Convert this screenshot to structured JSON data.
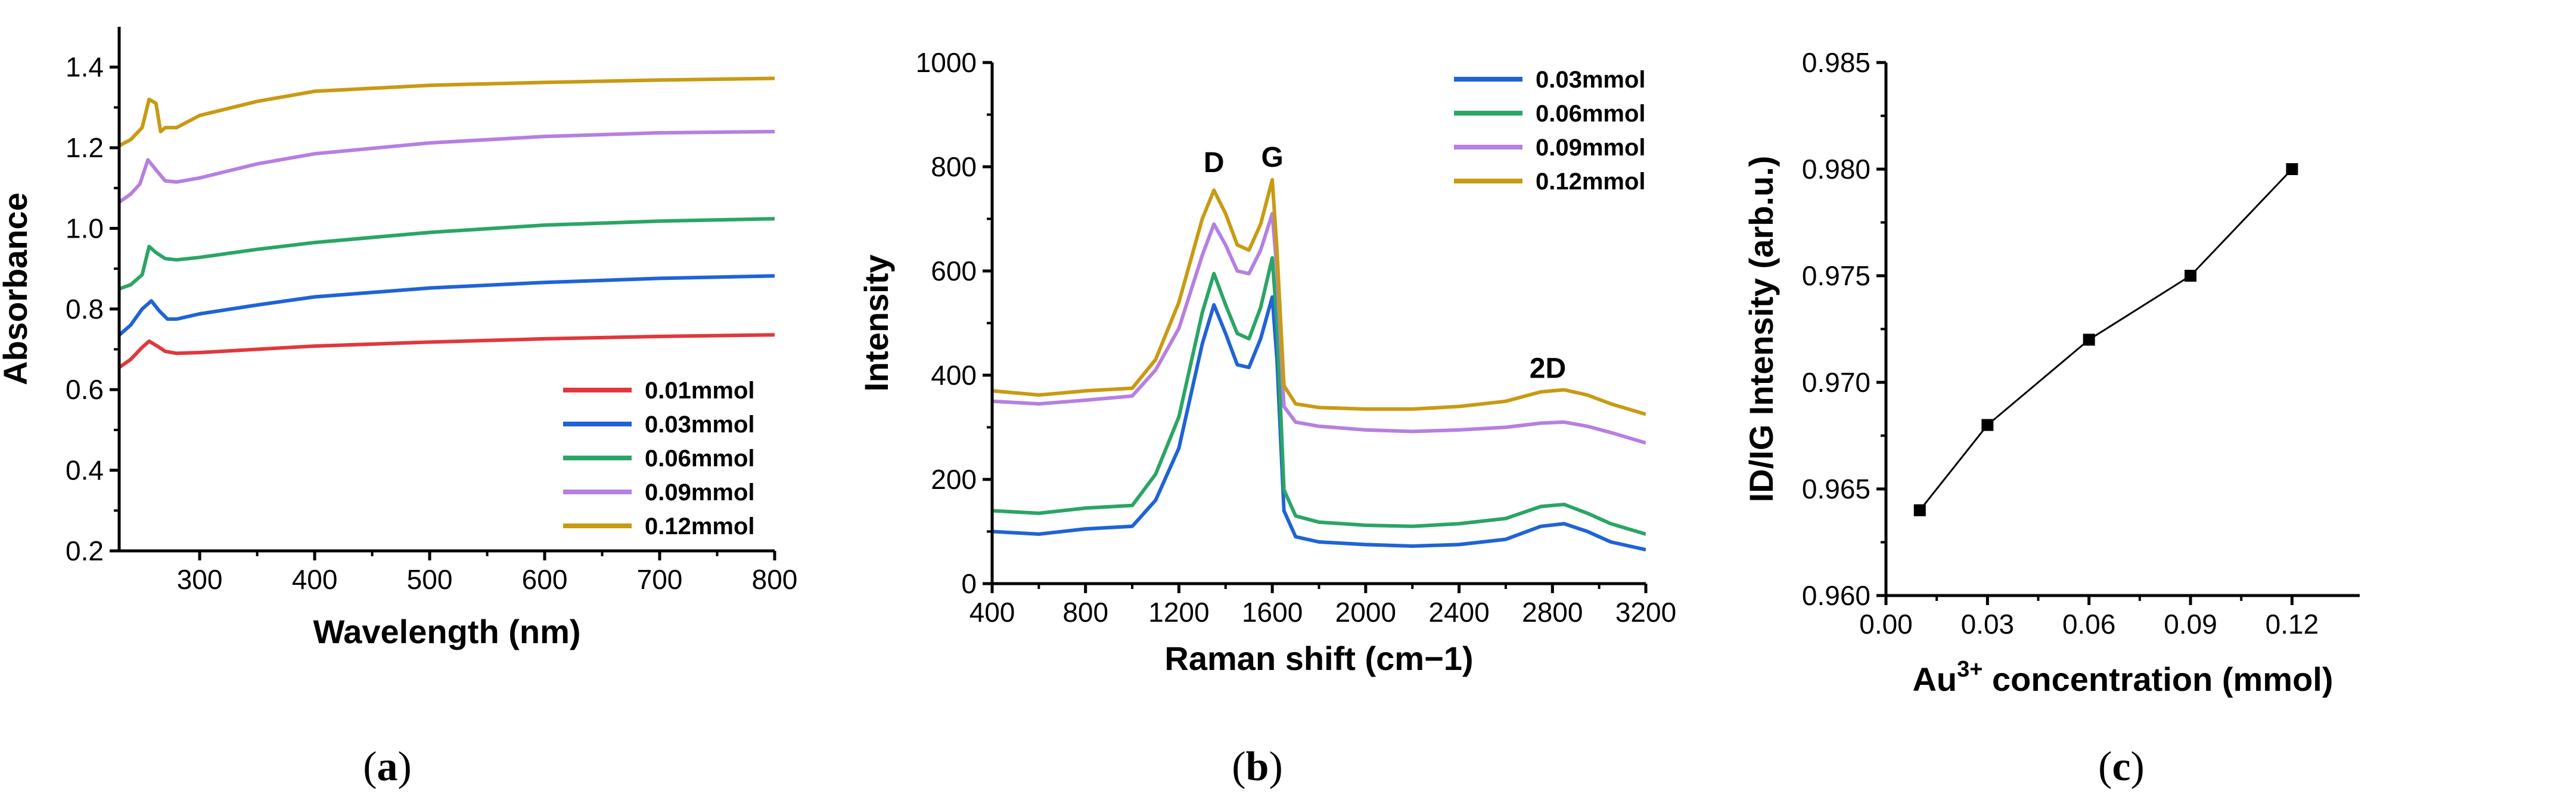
{
  "figure": {
    "panels": [
      "a",
      "b",
      "c"
    ],
    "caption_open": "(",
    "caption_close": ")"
  },
  "colors": {
    "red": "#e0383c",
    "blue": "#1f63d6",
    "green": "#2aa565",
    "purple": "#b67fe3",
    "gold": "#c99a12",
    "axis": "#000000"
  },
  "chart_data": [
    {
      "id": "a",
      "type": "line",
      "title": "",
      "xlabel": "Wavelength (nm)",
      "ylabel": "Absorbance",
      "xlim": [
        230,
        800
      ],
      "ylim": [
        0.2,
        1.5
      ],
      "xticks": [
        300,
        400,
        500,
        600,
        700,
        800
      ],
      "yticks": [
        0.2,
        0.4,
        0.6,
        0.8,
        1.0,
        1.2,
        1.4
      ],
      "ytick_labels": [
        "0.2",
        "0.4",
        "0.6",
        "0.8",
        "1.0",
        "1.2",
        "1.4"
      ],
      "legend_position": "bottom-right",
      "series": [
        {
          "name": "0.01mmol",
          "color": "#e0383c",
          "x": [
            230,
            240,
            250,
            256,
            262,
            270,
            280,
            300,
            350,
            400,
            500,
            600,
            700,
            800
          ],
          "y": [
            0.655,
            0.675,
            0.705,
            0.72,
            0.71,
            0.695,
            0.69,
            0.692,
            0.7,
            0.708,
            0.718,
            0.726,
            0.732,
            0.736
          ]
        },
        {
          "name": "0.03mmol",
          "color": "#1f63d6",
          "x": [
            230,
            240,
            250,
            258,
            265,
            272,
            280,
            300,
            350,
            400,
            500,
            600,
            700,
            800
          ],
          "y": [
            0.735,
            0.76,
            0.8,
            0.82,
            0.795,
            0.775,
            0.775,
            0.788,
            0.81,
            0.83,
            0.852,
            0.866,
            0.876,
            0.882
          ]
        },
        {
          "name": "0.06mmol",
          "color": "#2aa565",
          "x": [
            230,
            240,
            250,
            256,
            262,
            270,
            280,
            300,
            350,
            400,
            500,
            600,
            700,
            800
          ],
          "y": [
            0.85,
            0.86,
            0.885,
            0.955,
            0.94,
            0.925,
            0.922,
            0.928,
            0.948,
            0.965,
            0.99,
            1.008,
            1.018,
            1.024
          ]
        },
        {
          "name": "0.09mmol",
          "color": "#b67fe3",
          "x": [
            230,
            240,
            248,
            255,
            262,
            270,
            280,
            300,
            350,
            400,
            500,
            600,
            700,
            800
          ],
          "y": [
            1.065,
            1.085,
            1.11,
            1.17,
            1.145,
            1.118,
            1.115,
            1.125,
            1.16,
            1.185,
            1.212,
            1.228,
            1.237,
            1.24
          ]
        },
        {
          "name": "0.12mmol",
          "color": "#c99a12",
          "x": [
            230,
            240,
            250,
            256,
            262,
            266,
            270,
            280,
            300,
            350,
            400,
            500,
            600,
            700,
            800
          ],
          "y": [
            1.205,
            1.22,
            1.25,
            1.32,
            1.31,
            1.24,
            1.25,
            1.25,
            1.28,
            1.315,
            1.34,
            1.355,
            1.362,
            1.368,
            1.372
          ]
        }
      ]
    },
    {
      "id": "b",
      "type": "line",
      "title": "",
      "xlabel": "Raman shift (cm−1)",
      "ylabel": "Intensity",
      "xlim": [
        400,
        3200
      ],
      "ylim": [
        0,
        1000
      ],
      "xticks": [
        400,
        800,
        1200,
        1600,
        2000,
        2400,
        2800,
        3200
      ],
      "yticks": [
        0,
        200,
        400,
        600,
        800,
        1000
      ],
      "legend_position": "top-right",
      "annotations": [
        {
          "text": "D",
          "x": 1350,
          "y": 790
        },
        {
          "text": "G",
          "x": 1600,
          "y": 800
        },
        {
          "text": "2D",
          "x": 2780,
          "y": 395
        }
      ],
      "series": [
        {
          "name": "0.03mmol",
          "color": "#1f63d6",
          "x": [
            400,
            600,
            800,
            1000,
            1100,
            1200,
            1300,
            1350,
            1400,
            1450,
            1500,
            1550,
            1600,
            1620,
            1650,
            1700,
            1800,
            2000,
            2200,
            2400,
            2600,
            2750,
            2850,
            2950,
            3050,
            3200
          ],
          "y": [
            100,
            95,
            105,
            110,
            160,
            260,
            460,
            535,
            480,
            420,
            415,
            470,
            550,
            430,
            140,
            90,
            80,
            75,
            72,
            75,
            85,
            110,
            115,
            100,
            80,
            65
          ]
        },
        {
          "name": "0.06mmol",
          "color": "#2aa565",
          "x": [
            400,
            600,
            800,
            1000,
            1100,
            1200,
            1300,
            1350,
            1400,
            1450,
            1500,
            1550,
            1600,
            1620,
            1650,
            1700,
            1800,
            2000,
            2200,
            2400,
            2600,
            2750,
            2850,
            2950,
            3050,
            3200
          ],
          "y": [
            140,
            135,
            145,
            150,
            210,
            320,
            520,
            595,
            535,
            480,
            470,
            530,
            625,
            500,
            180,
            130,
            118,
            112,
            110,
            115,
            125,
            148,
            152,
            135,
            115,
            95
          ]
        },
        {
          "name": "0.09mmol",
          "color": "#b67fe3",
          "x": [
            400,
            600,
            800,
            1000,
            1100,
            1200,
            1300,
            1350,
            1400,
            1450,
            1500,
            1550,
            1600,
            1620,
            1650,
            1700,
            1800,
            2000,
            2200,
            2400,
            2600,
            2750,
            2850,
            2950,
            3050,
            3200
          ],
          "y": [
            350,
            345,
            352,
            360,
            410,
            490,
            630,
            690,
            650,
            600,
            595,
            640,
            710,
            600,
            340,
            310,
            302,
            295,
            292,
            295,
            300,
            308,
            310,
            302,
            290,
            270
          ]
        },
        {
          "name": "0.12mmol",
          "color": "#c99a12",
          "x": [
            400,
            600,
            800,
            1000,
            1100,
            1200,
            1300,
            1350,
            1400,
            1450,
            1500,
            1550,
            1600,
            1620,
            1650,
            1700,
            1800,
            2000,
            2200,
            2400,
            2600,
            2750,
            2850,
            2950,
            3050,
            3200
          ],
          "y": [
            370,
            362,
            370,
            375,
            430,
            540,
            700,
            755,
            710,
            650,
            640,
            690,
            775,
            640,
            380,
            345,
            338,
            335,
            335,
            340,
            350,
            368,
            372,
            362,
            345,
            325
          ]
        }
      ]
    },
    {
      "id": "c",
      "type": "line",
      "title": "",
      "xlabel": "Au3+ concentration (mmol)",
      "xlabel_parts": {
        "base": "Au",
        "sup": "3+",
        "rest": " concentration (mmol)"
      },
      "ylabel": "ID/IG Intensity (arb.u.)",
      "xlim": [
        0.0,
        0.14
      ],
      "ylim": [
        0.96,
        0.985
      ],
      "xticks": [
        0.0,
        0.03,
        0.06,
        0.09,
        0.12
      ],
      "xtick_labels": [
        "0.00",
        "0.03",
        "0.06",
        "0.09",
        "0.12"
      ],
      "yticks": [
        0.96,
        0.965,
        0.97,
        0.975,
        0.98,
        0.985
      ],
      "ytick_labels": [
        "0.960",
        "0.965",
        "0.970",
        "0.975",
        "0.980",
        "0.985"
      ],
      "marker": "square",
      "series": [
        {
          "name": "ID/IG",
          "color": "#000000",
          "x": [
            0.01,
            0.03,
            0.06,
            0.09,
            0.12
          ],
          "y": [
            0.964,
            0.968,
            0.972,
            0.975,
            0.98
          ]
        }
      ]
    }
  ]
}
